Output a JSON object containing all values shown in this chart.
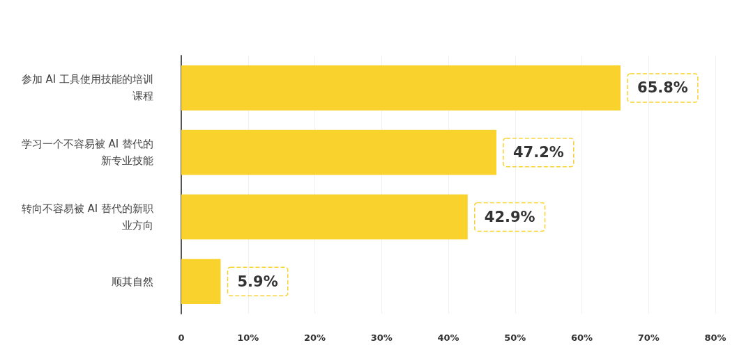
{
  "chart_data": {
    "type": "bar",
    "orientation": "horizontal",
    "categories": [
      "参加 AI 工具使用技能的培训课程",
      "学习一个不容易被 AI 替代的新专业技能",
      "转向不容易被 AI 替代的新职业方向",
      "顺其自然"
    ],
    "values": [
      65.8,
      47.2,
      42.9,
      5.9
    ],
    "value_labels": [
      "65.8%",
      "47.2%",
      "42.9%",
      "5.9%"
    ],
    "color": "#fad22e",
    "xlim": [
      0,
      80
    ],
    "xticks": [
      0,
      {
        "value": 10,
        "label": "10%"
      },
      {
        "value": 20,
        "label": "20%"
      },
      {
        "value": 30,
        "label": "30%"
      },
      {
        "value": 40,
        "label": "40%"
      },
      {
        "value": 50,
        "label": "50%"
      },
      {
        "value": 60,
        "label": "60%"
      },
      {
        "value": 70,
        "label": "70%"
      },
      {
        "value": 80,
        "label": "80%"
      }
    ],
    "grid": "x"
  }
}
